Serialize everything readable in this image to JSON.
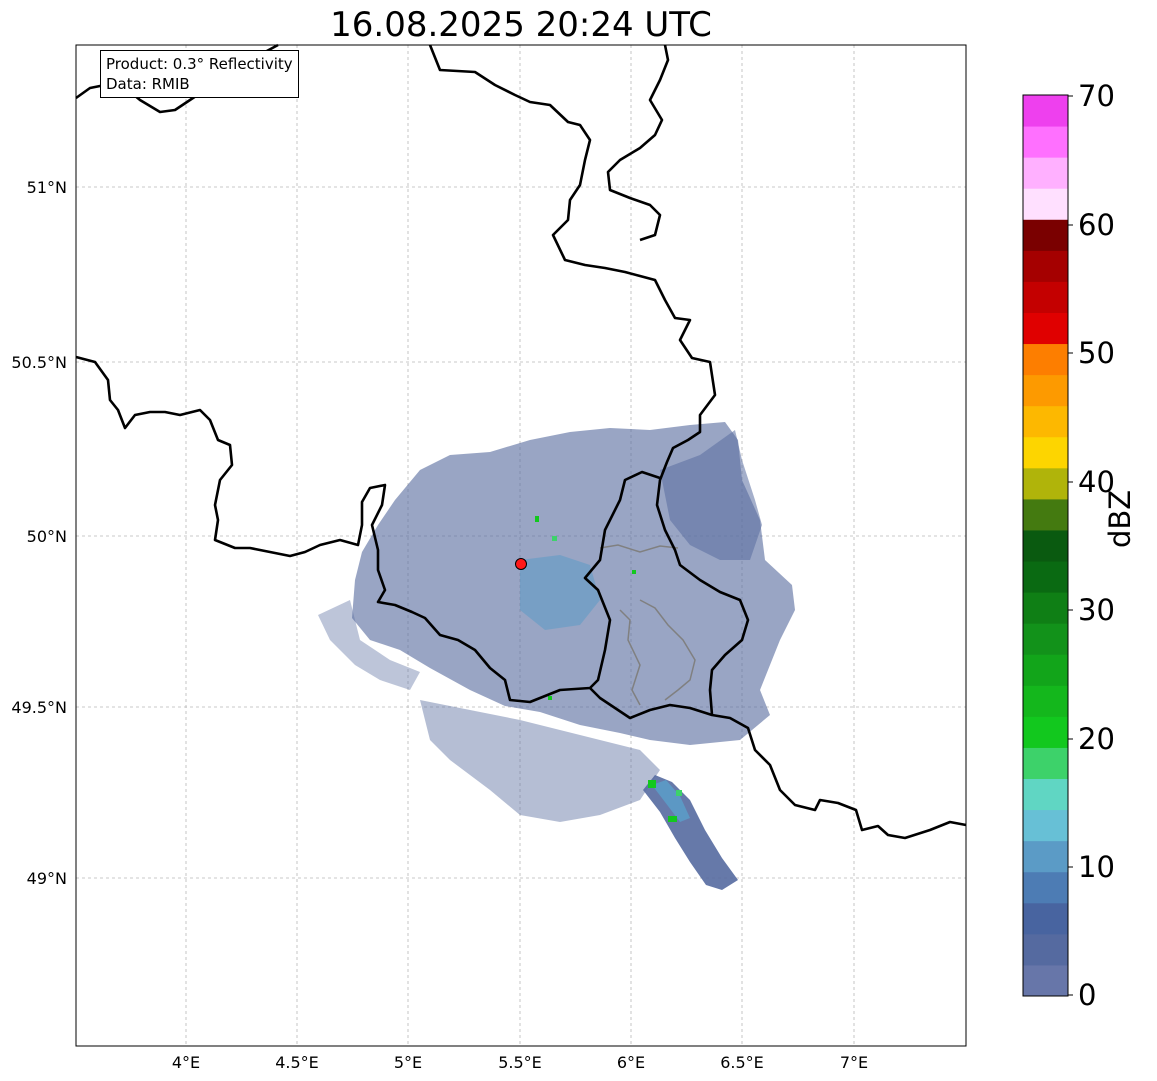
{
  "map": {
    "title": "16.08.2025 20:24 UTC",
    "info": {
      "product": "Product: 0.3° Reflectivity",
      "source": "Data: RMIB"
    },
    "lon_range": [
      3.5,
      7.5
    ],
    "lat_range": [
      48.55,
      51.42
    ],
    "grid_lines": true,
    "lon_ticks": [
      "4°E",
      "4.5°E",
      "5°E",
      "5.5°E",
      "6°E",
      "6.5°E",
      "7°E"
    ],
    "lat_ticks": [
      "51°N",
      "50.5°N",
      "50°N",
      "49.5°N",
      "49°N"
    ],
    "radar_site": {
      "lon": 5.5,
      "lat": 49.91,
      "color": "#ff1a1a"
    },
    "border_color": "#000000",
    "admin_border_color": "#808080",
    "echo_base_color": "#5a6ea0"
  },
  "colorbar": {
    "unit": "dBZ",
    "min": 0,
    "max": 70,
    "tick_labels": [
      "70",
      "60",
      "50",
      "40",
      "30",
      "20",
      "10",
      "0"
    ],
    "colors": [
      "#6776a9",
      "#556aa0",
      "#4864a0",
      "#4d7cb4",
      "#5b9bc6",
      "#67c0d6",
      "#60d6c3",
      "#3dd26a",
      "#12c81e",
      "#14b71c",
      "#12a51a",
      "#12921a",
      "#0f7f15",
      "#0a6a12",
      "#0a5a10",
      "#447a10",
      "#b0b40a",
      "#fdd500",
      "#fdb800",
      "#fd9a00",
      "#fd7e00",
      "#e00000",
      "#c40000",
      "#a50000",
      "#7a0000",
      "#ffe0ff",
      "#ffb0ff",
      "#ff70ff",
      "#ee40ee"
    ]
  }
}
